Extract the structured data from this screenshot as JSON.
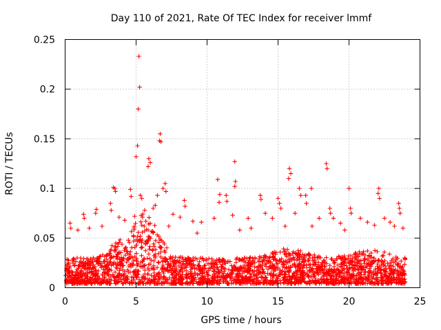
{
  "chart_data": {
    "type": "scatter",
    "title": "Day 110 of 2021, Rate Of TEC Index for receiver lmmf",
    "xlabel": "GPS time / hours",
    "ylabel": "ROTI / TECUs",
    "xlim": [
      0,
      25
    ],
    "ylim": [
      0,
      0.25
    ],
    "xticks": [
      0,
      5,
      10,
      15,
      20,
      25
    ],
    "xtick_labels": [
      "0",
      "5",
      "10",
      "15",
      "20",
      "25"
    ],
    "yticks": [
      0,
      0.05,
      0.1,
      0.15,
      0.2,
      0.25
    ],
    "ytick_labels": [
      "0",
      "0.05",
      "0.1",
      "0.15",
      "0.2",
      "0.25"
    ],
    "grid": true,
    "marker": "plus",
    "color": "#ff0000",
    "series": [
      {
        "name": "ROTI",
        "points": [
          [
            5.2,
            0.233
          ],
          [
            5.25,
            0.202
          ],
          [
            5.15,
            0.18
          ],
          [
            6.7,
            0.155
          ],
          [
            6.65,
            0.148
          ],
          [
            6.75,
            0.147
          ],
          [
            5.1,
            0.143
          ],
          [
            5.0,
            0.132
          ],
          [
            5.9,
            0.13
          ],
          [
            6.0,
            0.126
          ],
          [
            5.85,
            0.122
          ],
          [
            11.95,
            0.127
          ],
          [
            18.4,
            0.125
          ],
          [
            18.45,
            0.12
          ],
          [
            15.8,
            0.12
          ],
          [
            15.9,
            0.115
          ],
          [
            15.75,
            0.11
          ],
          [
            10.75,
            0.109
          ],
          [
            12.0,
            0.107
          ],
          [
            11.95,
            0.102
          ],
          [
            20.0,
            0.1
          ],
          [
            22.1,
            0.1
          ],
          [
            22.05,
            0.095
          ],
          [
            22.15,
            0.09
          ],
          [
            3.4,
            0.101
          ],
          [
            3.5,
            0.1
          ],
          [
            3.55,
            0.097
          ],
          [
            4.6,
            0.099
          ],
          [
            4.65,
            0.092
          ],
          [
            5.3,
            0.093
          ],
          [
            5.4,
            0.09
          ],
          [
            6.5,
            0.093
          ],
          [
            6.9,
            0.1
          ],
          [
            7.05,
            0.105
          ],
          [
            7.1,
            0.097
          ],
          [
            17.35,
            0.1
          ],
          [
            16.5,
            0.1
          ],
          [
            16.6,
            0.093
          ],
          [
            16.95,
            0.093
          ],
          [
            17.0,
            0.085
          ],
          [
            13.75,
            0.093
          ],
          [
            13.8,
            0.089
          ],
          [
            2.15,
            0.075
          ],
          [
            2.2,
            0.079
          ],
          [
            3.2,
            0.085
          ],
          [
            3.25,
            0.078
          ],
          [
            10.9,
            0.094
          ],
          [
            10.85,
            0.086
          ],
          [
            11.35,
            0.093
          ],
          [
            11.4,
            0.087
          ],
          [
            15.0,
            0.09
          ],
          [
            15.1,
            0.085
          ],
          [
            15.2,
            0.08
          ],
          [
            18.65,
            0.08
          ],
          [
            18.7,
            0.075
          ],
          [
            20.1,
            0.08
          ],
          [
            20.15,
            0.075
          ],
          [
            23.5,
            0.085
          ],
          [
            23.55,
            0.08
          ],
          [
            23.6,
            0.075
          ],
          [
            8.4,
            0.088
          ],
          [
            8.45,
            0.082
          ],
          [
            7.6,
            0.074
          ],
          [
            1.3,
            0.074
          ],
          [
            1.35,
            0.07
          ],
          [
            0.35,
            0.065
          ],
          [
            0.4,
            0.06
          ],
          [
            8.1,
            0.071
          ],
          [
            9.0,
            0.067
          ],
          [
            9.6,
            0.066
          ],
          [
            10.5,
            0.07
          ],
          [
            11.8,
            0.073
          ],
          [
            12.9,
            0.07
          ],
          [
            14.1,
            0.075
          ],
          [
            14.6,
            0.07
          ],
          [
            16.2,
            0.075
          ],
          [
            17.9,
            0.07
          ],
          [
            18.9,
            0.07
          ],
          [
            19.4,
            0.065
          ],
          [
            20.8,
            0.07
          ],
          [
            21.3,
            0.066
          ],
          [
            22.5,
            0.07
          ],
          [
            22.9,
            0.066
          ],
          [
            23.2,
            0.062
          ],
          [
            0.9,
            0.058
          ],
          [
            1.7,
            0.06
          ],
          [
            2.6,
            0.062
          ],
          [
            4.2,
            0.068
          ],
          [
            4.9,
            0.072
          ],
          [
            5.6,
            0.078
          ],
          [
            6.2,
            0.08
          ],
          [
            6.35,
            0.083
          ],
          [
            7.3,
            0.062
          ],
          [
            9.3,
            0.055
          ],
          [
            12.3,
            0.058
          ],
          [
            13.1,
            0.06
          ],
          [
            15.5,
            0.062
          ],
          [
            17.4,
            0.062
          ],
          [
            19.7,
            0.058
          ],
          [
            21.8,
            0.063
          ],
          [
            23.8,
            0.06
          ],
          [
            3.8,
            0.071
          ]
        ]
      }
    ]
  }
}
